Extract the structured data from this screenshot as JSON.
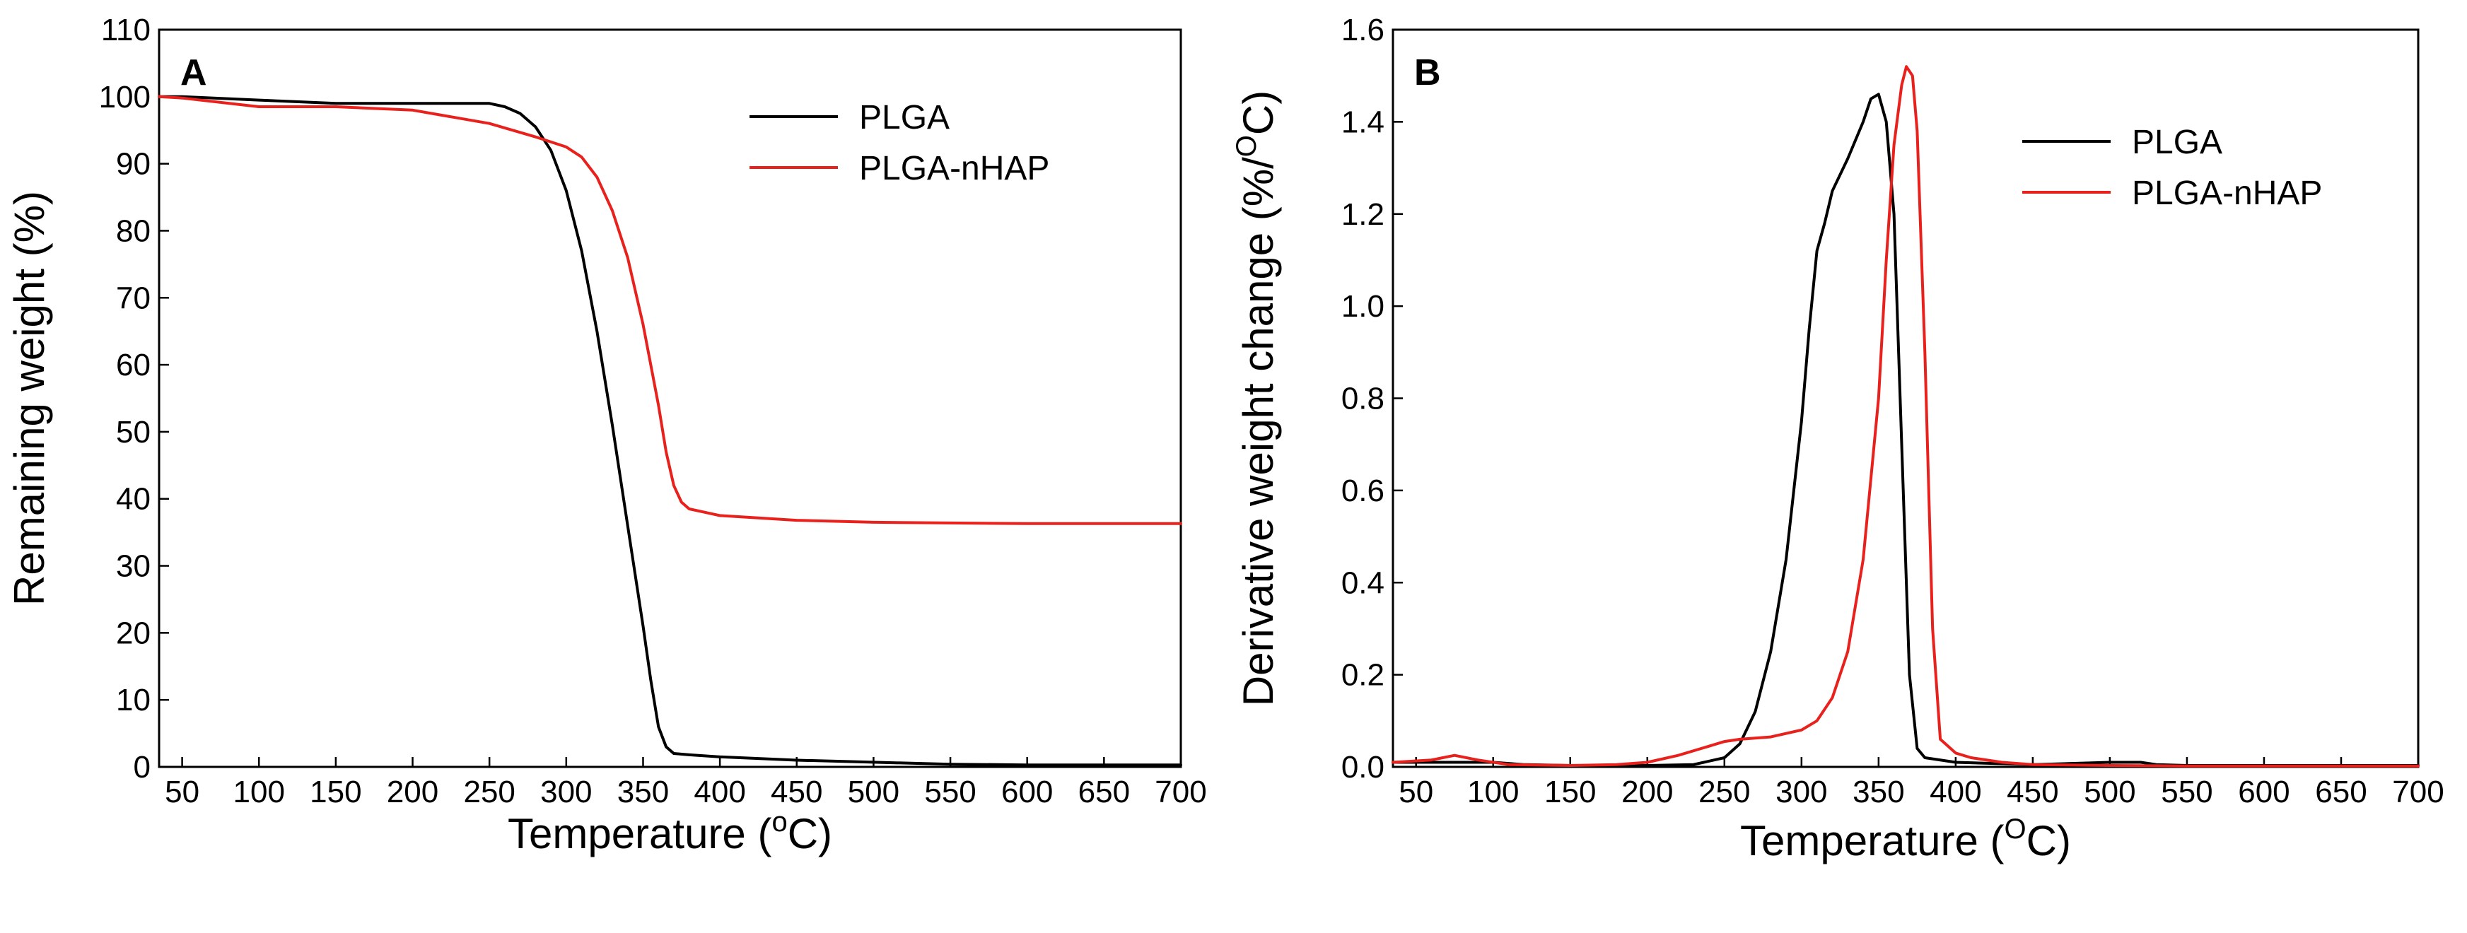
{
  "chart_data": [
    {
      "type": "line",
      "panel_label": "A",
      "xlabel": "Temperature (°C)",
      "xlabel_parts": {
        "prefix": "Temperature (",
        "sup": "o",
        "suffix": "C)"
      },
      "ylabel": "Remaining weight (%)",
      "xlim": [
        35,
        700
      ],
      "ylim": [
        0,
        110
      ],
      "x_ticks": [
        50,
        100,
        150,
        200,
        250,
        300,
        350,
        400,
        450,
        500,
        550,
        600,
        650,
        700
      ],
      "y_ticks": [
        0,
        10,
        20,
        30,
        40,
        50,
        60,
        70,
        80,
        90,
        100,
        110
      ],
      "grid": false,
      "legend_position": "top-right",
      "series": [
        {
          "name": "PLGA",
          "color": "#000000",
          "x": [
            35,
            50,
            100,
            150,
            200,
            250,
            260,
            270,
            280,
            290,
            300,
            310,
            320,
            330,
            340,
            350,
            355,
            360,
            365,
            370,
            380,
            400,
            450,
            500,
            550,
            600,
            650,
            700
          ],
          "y": [
            100,
            100,
            99.5,
            99,
            99,
            99,
            98.5,
            97.5,
            95.5,
            92,
            86,
            77,
            65,
            51,
            36,
            21,
            13,
            6,
            3,
            2,
            1.8,
            1.5,
            1.0,
            0.7,
            0.4,
            0.3,
            0.3,
            0.3
          ]
        },
        {
          "name": "PLGA-nHAP",
          "color": "#e8211c",
          "x": [
            35,
            50,
            100,
            150,
            200,
            250,
            280,
            300,
            310,
            320,
            330,
            340,
            350,
            360,
            365,
            370,
            375,
            380,
            390,
            400,
            450,
            500,
            550,
            600,
            650,
            700
          ],
          "y": [
            100,
            99.8,
            98.5,
            98.5,
            98,
            96,
            94,
            92.5,
            91,
            88,
            83,
            76,
            66,
            54,
            47,
            42,
            39.5,
            38.5,
            38,
            37.5,
            36.8,
            36.5,
            36.4,
            36.3,
            36.3,
            36.3
          ]
        }
      ]
    },
    {
      "type": "line",
      "panel_label": "B",
      "xlabel": "Temperature (°C)",
      "xlabel_parts": {
        "prefix": "Temperature (",
        "sup": "O",
        "suffix": "C)"
      },
      "ylabel": "Derivative weight change (%/°C)",
      "ylabel_parts": {
        "prefix": "Derivative weight change (%/",
        "sup": "O",
        "suffix": "C)"
      },
      "xlim": [
        35,
        700
      ],
      "ylim": [
        0,
        1.6
      ],
      "x_ticks": [
        50,
        100,
        150,
        200,
        250,
        300,
        350,
        400,
        450,
        500,
        550,
        600,
        650,
        700
      ],
      "y_ticks": [
        "0.0",
        "0.2",
        "0.4",
        "0.6",
        "0.8",
        "1.0",
        "1.2",
        "1.4",
        "1.6"
      ],
      "grid": false,
      "legend_position": "top-right",
      "series": [
        {
          "name": "PLGA",
          "color": "#000000",
          "x": [
            35,
            60,
            80,
            100,
            120,
            150,
            200,
            230,
            250,
            260,
            270,
            280,
            290,
            300,
            305,
            310,
            315,
            320,
            330,
            340,
            345,
            350,
            355,
            360,
            365,
            370,
            375,
            380,
            400,
            450,
            500,
            520,
            530,
            550,
            700
          ],
          "y": [
            0.01,
            0.01,
            0.01,
            0.01,
            0.005,
            0.003,
            0.003,
            0.005,
            0.02,
            0.05,
            0.12,
            0.25,
            0.45,
            0.75,
            0.95,
            1.12,
            1.18,
            1.25,
            1.32,
            1.4,
            1.45,
            1.46,
            1.4,
            1.2,
            0.7,
            0.2,
            0.04,
            0.02,
            0.01,
            0.005,
            0.01,
            0.01,
            0.005,
            0.003,
            0.003
          ]
        },
        {
          "name": "PLGA-nHAP",
          "color": "#e8211c",
          "x": [
            35,
            60,
            75,
            90,
            110,
            150,
            180,
            200,
            220,
            240,
            250,
            260,
            280,
            300,
            310,
            320,
            330,
            340,
            350,
            355,
            360,
            365,
            368,
            372,
            375,
            380,
            385,
            390,
            400,
            410,
            430,
            450,
            500,
            550,
            700
          ],
          "y": [
            0.01,
            0.015,
            0.025,
            0.015,
            0.005,
            0.003,
            0.005,
            0.01,
            0.025,
            0.045,
            0.055,
            0.06,
            0.065,
            0.08,
            0.1,
            0.15,
            0.25,
            0.45,
            0.8,
            1.1,
            1.35,
            1.48,
            1.52,
            1.5,
            1.38,
            0.9,
            0.3,
            0.06,
            0.03,
            0.02,
            0.01,
            0.005,
            0.003,
            0.002,
            0.002
          ]
        }
      ]
    }
  ]
}
